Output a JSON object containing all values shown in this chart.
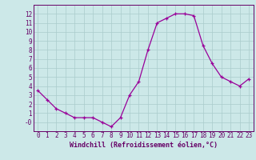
{
  "hours": [
    0,
    1,
    2,
    3,
    4,
    5,
    6,
    7,
    8,
    9,
    10,
    11,
    12,
    13,
    14,
    15,
    16,
    17,
    18,
    19,
    20,
    21,
    22,
    23
  ],
  "values": [
    3.5,
    2.5,
    1.5,
    1.0,
    0.5,
    0.5,
    0.5,
    0.0,
    -0.5,
    0.5,
    3.0,
    4.5,
    8.0,
    11.0,
    11.5,
    12.0,
    12.0,
    11.8,
    8.5,
    6.5,
    5.0,
    4.5,
    4.0,
    4.8
  ],
  "line_color": "#990099",
  "marker": "+",
  "marker_size": 3,
  "linewidth": 0.9,
  "markeredgewidth": 0.9,
  "xlabel": "Windchill (Refroidissement éolien,°C)",
  "ylim": [
    -1,
    13
  ],
  "xlim": [
    -0.5,
    23.5
  ],
  "bg_color": "#cce8e8",
  "grid_color": "#aacccc",
  "tick_color": "#660066",
  "label_color": "#660066",
  "xlabel_fontsize": 6.0,
  "tick_fontsize": 5.5,
  "ytick_labels": [
    "-0",
    "1",
    "2",
    "3",
    "4",
    "5",
    "6",
    "7",
    "8",
    "9",
    "10",
    "11",
    "12"
  ],
  "ytick_values": [
    0,
    1,
    2,
    3,
    4,
    5,
    6,
    7,
    8,
    9,
    10,
    11,
    12
  ]
}
